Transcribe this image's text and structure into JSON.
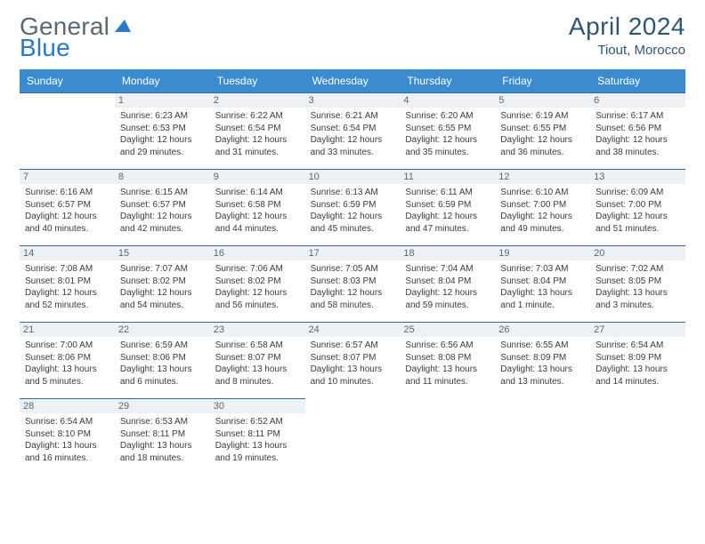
{
  "logo_general": "General",
  "logo_blue": "Blue",
  "title": "April 2024",
  "location": "Tiout, Morocco",
  "colors": {
    "header_bg": "#3a8ccf",
    "rule": "#3a6a9a",
    "daynum_bg": "#eef1f3",
    "brand_gray": "#5a6872",
    "brand_blue": "#2b79c2",
    "title_color": "#2f5670"
  },
  "fonts": {
    "title_pt": 28,
    "location_pt": 15,
    "header_pt": 12,
    "daynum_pt": 11,
    "body_pt": 10
  },
  "day_headers": [
    "Sunday",
    "Monday",
    "Tuesday",
    "Wednesday",
    "Thursday",
    "Friday",
    "Saturday"
  ],
  "weeks": [
    [
      {
        "n": "",
        "sr": "",
        "ss": "",
        "dl": ""
      },
      {
        "n": "1",
        "sr": "6:23 AM",
        "ss": "6:53 PM",
        "dl": "12 hours and 29 minutes."
      },
      {
        "n": "2",
        "sr": "6:22 AM",
        "ss": "6:54 PM",
        "dl": "12 hours and 31 minutes."
      },
      {
        "n": "3",
        "sr": "6:21 AM",
        "ss": "6:54 PM",
        "dl": "12 hours and 33 minutes."
      },
      {
        "n": "4",
        "sr": "6:20 AM",
        "ss": "6:55 PM",
        "dl": "12 hours and 35 minutes."
      },
      {
        "n": "5",
        "sr": "6:19 AM",
        "ss": "6:55 PM",
        "dl": "12 hours and 36 minutes."
      },
      {
        "n": "6",
        "sr": "6:17 AM",
        "ss": "6:56 PM",
        "dl": "12 hours and 38 minutes."
      }
    ],
    [
      {
        "n": "7",
        "sr": "6:16 AM",
        "ss": "6:57 PM",
        "dl": "12 hours and 40 minutes."
      },
      {
        "n": "8",
        "sr": "6:15 AM",
        "ss": "6:57 PM",
        "dl": "12 hours and 42 minutes."
      },
      {
        "n": "9",
        "sr": "6:14 AM",
        "ss": "6:58 PM",
        "dl": "12 hours and 44 minutes."
      },
      {
        "n": "10",
        "sr": "6:13 AM",
        "ss": "6:59 PM",
        "dl": "12 hours and 45 minutes."
      },
      {
        "n": "11",
        "sr": "6:11 AM",
        "ss": "6:59 PM",
        "dl": "12 hours and 47 minutes."
      },
      {
        "n": "12",
        "sr": "6:10 AM",
        "ss": "7:00 PM",
        "dl": "12 hours and 49 minutes."
      },
      {
        "n": "13",
        "sr": "6:09 AM",
        "ss": "7:00 PM",
        "dl": "12 hours and 51 minutes."
      }
    ],
    [
      {
        "n": "14",
        "sr": "7:08 AM",
        "ss": "8:01 PM",
        "dl": "12 hours and 52 minutes."
      },
      {
        "n": "15",
        "sr": "7:07 AM",
        "ss": "8:02 PM",
        "dl": "12 hours and 54 minutes."
      },
      {
        "n": "16",
        "sr": "7:06 AM",
        "ss": "8:02 PM",
        "dl": "12 hours and 56 minutes."
      },
      {
        "n": "17",
        "sr": "7:05 AM",
        "ss": "8:03 PM",
        "dl": "12 hours and 58 minutes."
      },
      {
        "n": "18",
        "sr": "7:04 AM",
        "ss": "8:04 PM",
        "dl": "12 hours and 59 minutes."
      },
      {
        "n": "19",
        "sr": "7:03 AM",
        "ss": "8:04 PM",
        "dl": "13 hours and 1 minute."
      },
      {
        "n": "20",
        "sr": "7:02 AM",
        "ss": "8:05 PM",
        "dl": "13 hours and 3 minutes."
      }
    ],
    [
      {
        "n": "21",
        "sr": "7:00 AM",
        "ss": "8:06 PM",
        "dl": "13 hours and 5 minutes."
      },
      {
        "n": "22",
        "sr": "6:59 AM",
        "ss": "8:06 PM",
        "dl": "13 hours and 6 minutes."
      },
      {
        "n": "23",
        "sr": "6:58 AM",
        "ss": "8:07 PM",
        "dl": "13 hours and 8 minutes."
      },
      {
        "n": "24",
        "sr": "6:57 AM",
        "ss": "8:07 PM",
        "dl": "13 hours and 10 minutes."
      },
      {
        "n": "25",
        "sr": "6:56 AM",
        "ss": "8:08 PM",
        "dl": "13 hours and 11 minutes."
      },
      {
        "n": "26",
        "sr": "6:55 AM",
        "ss": "8:09 PM",
        "dl": "13 hours and 13 minutes."
      },
      {
        "n": "27",
        "sr": "6:54 AM",
        "ss": "8:09 PM",
        "dl": "13 hours and 14 minutes."
      }
    ],
    [
      {
        "n": "28",
        "sr": "6:54 AM",
        "ss": "8:10 PM",
        "dl": "13 hours and 16 minutes."
      },
      {
        "n": "29",
        "sr": "6:53 AM",
        "ss": "8:11 PM",
        "dl": "13 hours and 18 minutes."
      },
      {
        "n": "30",
        "sr": "6:52 AM",
        "ss": "8:11 PM",
        "dl": "13 hours and 19 minutes."
      },
      {
        "n": "",
        "sr": "",
        "ss": "",
        "dl": ""
      },
      {
        "n": "",
        "sr": "",
        "ss": "",
        "dl": ""
      },
      {
        "n": "",
        "sr": "",
        "ss": "",
        "dl": ""
      },
      {
        "n": "",
        "sr": "",
        "ss": "",
        "dl": ""
      }
    ]
  ],
  "labels": {
    "sunrise": "Sunrise: ",
    "sunset": "Sunset: ",
    "daylight": "Daylight: "
  }
}
